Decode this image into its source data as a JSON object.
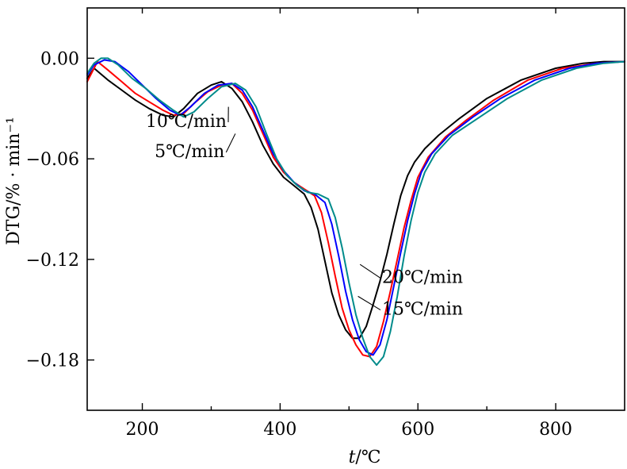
{
  "chart_data": {
    "type": "line",
    "title": "",
    "xlabel_italic": "t",
    "xlabel_unit": "/℃",
    "ylabel": "DTG/% · min⁻¹",
    "xlim": [
      120,
      900
    ],
    "ylim": [
      -0.21,
      0.03
    ],
    "x_ticks": [
      200,
      400,
      600,
      800
    ],
    "x_tick_labels": [
      "200",
      "400",
      "600",
      "800"
    ],
    "x_minor_ticks": [
      300,
      500,
      700
    ],
    "y_ticks": [
      0.0,
      -0.06,
      -0.12,
      -0.18
    ],
    "y_tick_labels": [
      "0.00",
      "−0.06",
      "−0.12",
      "−0.18"
    ],
    "grid": false,
    "legend": "inline labels",
    "series": [
      {
        "name": "5℃/min",
        "color": "#000000",
        "x": [
          120,
          130,
          150,
          170,
          190,
          210,
          230,
          245,
          260,
          280,
          300,
          315,
          330,
          345,
          360,
          375,
          390,
          405,
          420,
          435,
          445,
          455,
          465,
          475,
          485,
          495,
          505,
          515,
          525,
          535,
          545,
          555,
          565,
          575,
          585,
          595,
          610,
          630,
          660,
          700,
          750,
          800,
          840,
          870,
          900
        ],
        "y": [
          -0.012,
          -0.006,
          -0.013,
          -0.019,
          -0.025,
          -0.03,
          -0.034,
          -0.035,
          -0.03,
          -0.021,
          -0.016,
          -0.014,
          -0.018,
          -0.026,
          -0.038,
          -0.052,
          -0.063,
          -0.071,
          -0.076,
          -0.081,
          -0.089,
          -0.102,
          -0.121,
          -0.14,
          -0.153,
          -0.162,
          -0.167,
          -0.167,
          -0.16,
          -0.147,
          -0.133,
          -0.117,
          -0.099,
          -0.082,
          -0.07,
          -0.062,
          -0.054,
          -0.046,
          -0.036,
          -0.024,
          -0.013,
          -0.006,
          -0.003,
          -0.002,
          -0.002
        ]
      },
      {
        "name": "10℃/min",
        "color": "#ff0000",
        "x": [
          120,
          135,
          150,
          170,
          190,
          210,
          230,
          245,
          260,
          275,
          295,
          315,
          330,
          345,
          360,
          375,
          390,
          405,
          420,
          435,
          450,
          460,
          470,
          480,
          490,
          500,
          510,
          520,
          530,
          540,
          550,
          560,
          570,
          580,
          590,
          600,
          615,
          640,
          670,
          710,
          760,
          810,
          860,
          900
        ],
        "y": [
          -0.014,
          -0.002,
          -0.007,
          -0.014,
          -0.021,
          -0.026,
          -0.031,
          -0.034,
          -0.033,
          -0.027,
          -0.02,
          -0.016,
          -0.015,
          -0.021,
          -0.031,
          -0.045,
          -0.059,
          -0.068,
          -0.074,
          -0.078,
          -0.082,
          -0.092,
          -0.11,
          -0.13,
          -0.149,
          -0.162,
          -0.171,
          -0.177,
          -0.178,
          -0.172,
          -0.157,
          -0.139,
          -0.12,
          -0.101,
          -0.085,
          -0.071,
          -0.059,
          -0.047,
          -0.037,
          -0.025,
          -0.013,
          -0.006,
          -0.003,
          -0.002
        ]
      },
      {
        "name": "15℃/min",
        "color": "#0000ff",
        "x": [
          120,
          130,
          145,
          160,
          180,
          200,
          220,
          240,
          255,
          270,
          290,
          310,
          330,
          345,
          360,
          375,
          390,
          405,
          420,
          435,
          450,
          465,
          475,
          485,
          495,
          505,
          515,
          525,
          535,
          545,
          555,
          565,
          575,
          585,
          595,
          605,
          620,
          645,
          680,
          720,
          770,
          820,
          860,
          900
        ],
        "y": [
          -0.01,
          -0.004,
          -0.001,
          -0.002,
          -0.008,
          -0.016,
          -0.024,
          -0.031,
          -0.034,
          -0.029,
          -0.021,
          -0.016,
          -0.015,
          -0.019,
          -0.029,
          -0.043,
          -0.057,
          -0.067,
          -0.074,
          -0.079,
          -0.081,
          -0.086,
          -0.099,
          -0.118,
          -0.139,
          -0.156,
          -0.168,
          -0.175,
          -0.177,
          -0.171,
          -0.156,
          -0.136,
          -0.116,
          -0.097,
          -0.081,
          -0.068,
          -0.057,
          -0.046,
          -0.035,
          -0.024,
          -0.013,
          -0.006,
          -0.003,
          -0.002
        ]
      },
      {
        "name": "20℃/min",
        "color": "#008b8b",
        "x": [
          120,
          130,
          140,
          150,
          165,
          185,
          205,
          225,
          245,
          260,
          275,
          295,
          315,
          335,
          350,
          365,
          380,
          395,
          410,
          425,
          440,
          455,
          470,
          480,
          490,
          500,
          510,
          520,
          530,
          540,
          550,
          560,
          570,
          580,
          590,
          600,
          610,
          625,
          650,
          690,
          730,
          780,
          830,
          870,
          900
        ],
        "y": [
          -0.009,
          -0.003,
          0.0,
          0.0,
          -0.004,
          -0.012,
          -0.018,
          -0.025,
          -0.031,
          -0.035,
          -0.032,
          -0.024,
          -0.017,
          -0.015,
          -0.019,
          -0.029,
          -0.045,
          -0.06,
          -0.07,
          -0.076,
          -0.08,
          -0.081,
          -0.084,
          -0.095,
          -0.113,
          -0.134,
          -0.153,
          -0.167,
          -0.178,
          -0.183,
          -0.178,
          -0.163,
          -0.142,
          -0.118,
          -0.097,
          -0.08,
          -0.068,
          -0.057,
          -0.046,
          -0.035,
          -0.024,
          -0.013,
          -0.006,
          -0.003,
          -0.002
        ]
      }
    ],
    "annotations": [
      {
        "text": "10℃/min",
        "x": 205,
        "y": -0.041,
        "target_x": 325,
        "target_y": -0.029
      },
      {
        "text": "5℃/min",
        "x": 218,
        "y": -0.059,
        "target_x": 335,
        "target_y": -0.045
      },
      {
        "text": "20℃/min",
        "x": 548,
        "y": -0.134,
        "target_x": 516,
        "target_y": -0.123
      },
      {
        "text": "15℃/min",
        "x": 548,
        "y": -0.153,
        "target_x": 513,
        "target_y": -0.142
      }
    ]
  }
}
